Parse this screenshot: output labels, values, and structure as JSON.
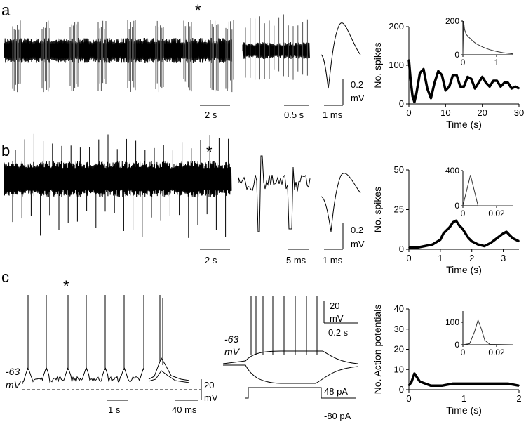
{
  "panels": [
    {
      "letter": "a",
      "star": "*",
      "scale_labels": [
        "2 s",
        "0.5 s",
        "1 ms"
      ],
      "amp_label": [
        "0.2",
        "mV"
      ]
    },
    {
      "letter": "b",
      "star": "*",
      "scale_labels": [
        "2 s",
        "5 ms",
        "1 ms"
      ],
      "amp_label": [
        "0.2",
        "mV"
      ]
    },
    {
      "letter": "c",
      "star": "*",
      "left_scale_labels": [
        "1 s",
        "40 ms"
      ],
      "amp_left": [
        "20",
        "mV"
      ],
      "resting_left": [
        "-63",
        "mV"
      ],
      "resting_mid": [
        "-63",
        "mV"
      ],
      "amp_mid": [
        "20",
        "mV"
      ],
      "time_mid": "0.2 s",
      "current_labels": [
        "48 pA",
        "-80 pA"
      ]
    }
  ],
  "colors": {
    "trace": "#000000",
    "gray_trace": "#555555"
  },
  "chart_data": [
    {
      "type": "line",
      "panel": "a",
      "ylabel": "No. spikes",
      "xlabel": "Time (s)",
      "xlim": [
        0,
        30
      ],
      "ylim": [
        0,
        200
      ],
      "xticks": [
        "0",
        "10",
        "20",
        "30"
      ],
      "yticks": [
        "0",
        "100",
        "200"
      ],
      "x": [
        0,
        0.5,
        1,
        1.5,
        2,
        3,
        4,
        5,
        6,
        7,
        8,
        9,
        10,
        11,
        12,
        13,
        14,
        15,
        16,
        17,
        18,
        19,
        20,
        21,
        22,
        23,
        24,
        25,
        26,
        27,
        28,
        29,
        30
      ],
      "values": [
        115,
        60,
        20,
        5,
        25,
        80,
        90,
        40,
        15,
        55,
        85,
        75,
        35,
        45,
        75,
        75,
        45,
        45,
        70,
        65,
        40,
        55,
        70,
        55,
        45,
        60,
        60,
        45,
        55,
        55,
        40,
        45,
        40
      ],
      "inset": {
        "xlim": [
          0,
          1.5
        ],
        "ylim": [
          0,
          200
        ],
        "xticks": [
          "0",
          "1"
        ],
        "yticks": [
          "0",
          "200"
        ],
        "x": [
          0,
          0.02,
          0.05,
          0.1,
          0.2,
          0.3,
          0.4,
          0.6,
          0.8,
          1.0,
          1.2,
          1.5
        ],
        "values": [
          0,
          200,
          150,
          120,
          100,
          80,
          65,
          45,
          30,
          20,
          12,
          5
        ]
      }
    },
    {
      "type": "line",
      "panel": "b",
      "ylabel": "No. spikes",
      "xlabel": "Time (s)",
      "xlim": [
        0,
        3.5
      ],
      "ylim": [
        0,
        50
      ],
      "xticks": [
        "0",
        "1",
        "2",
        "3"
      ],
      "yticks": [
        "0",
        "25",
        "50"
      ],
      "x": [
        0,
        0.25,
        0.5,
        0.75,
        1.0,
        1.1,
        1.2,
        1.3,
        1.4,
        1.5,
        1.6,
        1.7,
        1.8,
        1.9,
        2.0,
        2.2,
        2.4,
        2.6,
        2.8,
        3.0,
        3.1,
        3.2,
        3.3,
        3.4,
        3.5
      ],
      "values": [
        1,
        1,
        2,
        3,
        6,
        10,
        12,
        14,
        17,
        18,
        15,
        13,
        10,
        7,
        5,
        3,
        2,
        4,
        7,
        10,
        11,
        9,
        7,
        6,
        5
      ],
      "inset": {
        "xlim": [
          0,
          0.03
        ],
        "ylim": [
          0,
          400
        ],
        "xticks": [
          "0",
          "0.02"
        ],
        "yticks": [
          "0",
          "400"
        ],
        "x": [
          0,
          0.0045,
          0.009,
          0.03
        ],
        "values": [
          0,
          350,
          0,
          0
        ]
      }
    },
    {
      "type": "line",
      "panel": "c",
      "ylabel": "No. Action potentials",
      "xlabel": "Time (s)",
      "xlim": [
        0,
        2
      ],
      "ylim": [
        0,
        40
      ],
      "xticks": [
        "0",
        "1",
        "2"
      ],
      "yticks": [
        "0",
        "10",
        "20",
        "30",
        "40"
      ],
      "x": [
        0,
        0.05,
        0.1,
        0.15,
        0.2,
        0.3,
        0.4,
        0.6,
        0.8,
        1.0,
        1.2,
        1.4,
        1.6,
        1.8,
        2.0
      ],
      "values": [
        2,
        4,
        8,
        6,
        4,
        3,
        2,
        2,
        3,
        3,
        3,
        3,
        3,
        3,
        2
      ],
      "inset": {
        "xlim": [
          0,
          0.03
        ],
        "ylim": [
          0,
          150
        ],
        "xticks": [
          "0",
          "0.02"
        ],
        "yticks": [
          "0",
          "100"
        ],
        "x": [
          0,
          0.004,
          0.007,
          0.009,
          0.011,
          0.013,
          0.016,
          0.03
        ],
        "values": [
          0,
          5,
          60,
          110,
          70,
          20,
          2,
          0
        ]
      }
    }
  ]
}
